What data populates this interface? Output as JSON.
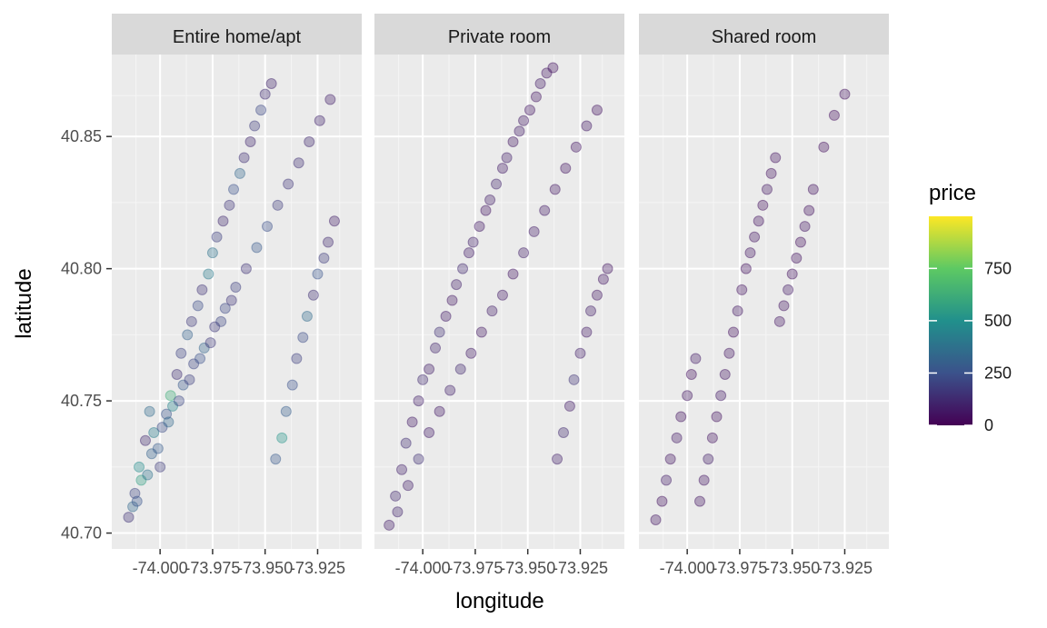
{
  "chart_data": {
    "type": "scatter",
    "facet_by": "room_type",
    "facets": [
      "Entire home/apt",
      "Private room",
      "Shared room"
    ],
    "xlabel": "longitude",
    "ylabel": "latitude",
    "xticks": [
      -74.0,
      -73.975,
      -73.95,
      -73.925
    ],
    "xtick_labels": [
      "-74.000",
      "-73.975",
      "-73.950",
      "-73.925"
    ],
    "yticks": [
      40.7,
      40.75,
      40.8,
      40.85
    ],
    "ytick_labels": [
      "40.70",
      "40.75",
      "40.80",
      "40.85"
    ],
    "xlim": [
      -74.023,
      -73.904
    ],
    "ylim": [
      40.694,
      40.881
    ],
    "grid": true,
    "point_alpha": 0.2,
    "legend": {
      "title": "price",
      "position": "right",
      "range": [
        0,
        999
      ],
      "breaks": [
        0,
        250,
        500,
        750
      ],
      "break_labels": [
        "0",
        "250",
        "500",
        "750"
      ],
      "colors": [
        "#440154",
        "#3b528b",
        "#21908c",
        "#5dc963",
        "#fde725"
      ]
    },
    "series": [
      {
        "facet": "Entire home/apt",
        "x": [
          -74.015,
          -74.012,
          -74.01,
          -74.007,
          -74.005,
          -74.003,
          -74.0,
          -73.997,
          -73.995,
          -73.992,
          -73.99,
          -73.987,
          -73.985,
          -73.982,
          -73.98,
          -73.977,
          -73.975,
          -73.973,
          -73.97,
          -73.967,
          -73.965,
          -73.962,
          -73.96,
          -73.957,
          -73.955,
          -73.952,
          -73.95,
          -73.947,
          -73.945,
          -73.942,
          -73.94,
          -73.937,
          -73.935,
          -73.932,
          -73.93,
          -73.927,
          -73.925,
          -73.922,
          -73.92,
          -73.917,
          -74.013,
          -74.009,
          -74.004,
          -73.999,
          -73.994,
          -73.989,
          -73.984,
          -73.979,
          -73.974,
          -73.969,
          -73.964,
          -73.959,
          -73.954,
          -73.949,
          -73.944,
          -73.939,
          -73.934,
          -73.929,
          -73.924,
          -73.919,
          -74.011,
          -74.006,
          -74.001,
          -73.996,
          -73.991,
          -73.986,
          -73.981,
          -73.976,
          -73.971,
          -73.966
        ],
        "y": [
          40.706,
          40.715,
          40.725,
          40.735,
          40.746,
          40.738,
          40.725,
          40.745,
          40.752,
          40.76,
          40.768,
          40.775,
          40.78,
          40.786,
          40.792,
          40.798,
          40.806,
          40.812,
          40.818,
          40.824,
          40.83,
          40.836,
          40.842,
          40.848,
          40.854,
          40.86,
          40.866,
          40.87,
          40.728,
          40.736,
          40.746,
          40.756,
          40.766,
          40.774,
          40.782,
          40.79,
          40.798,
          40.804,
          40.81,
          40.818,
          40.71,
          40.72,
          40.73,
          40.74,
          40.748,
          40.756,
          40.764,
          40.77,
          40.778,
          40.785,
          40.793,
          40.8,
          40.808,
          40.816,
          40.824,
          40.832,
          40.84,
          40.848,
          40.856,
          40.864,
          40.712,
          40.722,
          40.732,
          40.742,
          40.75,
          40.758,
          40.766,
          40.772,
          40.78,
          40.788
        ],
        "price": [
          150,
          210,
          480,
          120,
          350,
          420,
          180,
          260,
          620,
          140,
          200,
          310,
          170,
          230,
          150,
          410,
          380,
          190,
          120,
          160,
          250,
          330,
          140,
          110,
          180,
          220,
          130,
          100,
          280,
          520,
          300,
          250,
          190,
          230,
          350,
          140,
          260,
          180,
          120,
          90,
          340,
          560,
          310,
          230,
          450,
          280,
          210,
          320,
          170,
          220,
          190,
          150,
          280,
          240,
          180,
          160,
          140,
          120,
          100,
          90,
          260,
          380,
          290,
          340,
          220,
          190,
          250,
          170,
          210,
          160
        ]
      },
      {
        "facet": "Private room",
        "x": [
          -74.016,
          -74.013,
          -74.01,
          -74.008,
          -74.005,
          -74.002,
          -74.0,
          -73.997,
          -73.994,
          -73.992,
          -73.989,
          -73.986,
          -73.984,
          -73.981,
          -73.978,
          -73.976,
          -73.973,
          -73.97,
          -73.968,
          -73.965,
          -73.962,
          -73.96,
          -73.957,
          -73.954,
          -73.952,
          -73.949,
          -73.946,
          -73.944,
          -73.941,
          -73.938,
          -73.936,
          -73.933,
          -73.93,
          -73.928,
          -73.925,
          -73.922,
          -73.92,
          -73.917,
          -73.914,
          -73.912,
          -74.012,
          -74.007,
          -74.002,
          -73.997,
          -73.992,
          -73.987,
          -73.982,
          -73.977,
          -73.972,
          -73.967,
          -73.962,
          -73.957,
          -73.952,
          -73.947,
          -73.942,
          -73.937,
          -73.932,
          -73.927,
          -73.922,
          -73.917
        ],
        "y": [
          40.703,
          40.714,
          40.724,
          40.734,
          40.742,
          40.75,
          40.758,
          40.762,
          40.77,
          40.776,
          40.782,
          40.788,
          40.794,
          40.8,
          40.806,
          40.81,
          40.816,
          40.822,
          40.826,
          40.832,
          40.838,
          40.842,
          40.848,
          40.852,
          40.856,
          40.86,
          40.865,
          40.87,
          40.874,
          40.876,
          40.728,
          40.738,
          40.748,
          40.758,
          40.768,
          40.776,
          40.784,
          40.79,
          40.796,
          40.8,
          40.708,
          40.718,
          40.728,
          40.738,
          40.746,
          40.754,
          40.762,
          40.768,
          40.776,
          40.784,
          40.79,
          40.798,
          40.806,
          40.814,
          40.822,
          40.83,
          40.838,
          40.846,
          40.854,
          40.86
        ],
        "price": [
          80,
          110,
          95,
          130,
          70,
          90,
          120,
          85,
          100,
          140,
          75,
          65,
          90,
          110,
          80,
          95,
          70,
          60,
          85,
          100,
          75,
          90,
          65,
          80,
          70,
          60,
          55,
          75,
          60,
          50,
          95,
          120,
          80,
          150,
          90,
          70,
          85,
          65,
          60,
          55,
          100,
          90,
          140,
          80,
          70,
          95,
          110,
          75,
          65,
          85,
          70,
          60,
          90,
          80,
          75,
          65,
          55,
          60,
          70,
          50
        ]
      },
      {
        "facet": "Shared room",
        "x": [
          -74.015,
          -74.012,
          -74.01,
          -74.008,
          -74.005,
          -74.003,
          -74.0,
          -73.998,
          -73.996,
          -73.994,
          -73.992,
          -73.99,
          -73.988,
          -73.986,
          -73.984,
          -73.982,
          -73.98,
          -73.978,
          -73.976,
          -73.974,
          -73.972,
          -73.97,
          -73.968,
          -73.966,
          -73.964,
          -73.962,
          -73.96,
          -73.958,
          -73.956,
          -73.954,
          -73.952,
          -73.95,
          -73.948,
          -73.946,
          -73.944,
          -73.942,
          -73.94,
          -73.935,
          -73.93,
          -73.925
        ],
        "y": [
          40.705,
          40.712,
          40.72,
          40.728,
          40.736,
          40.744,
          40.752,
          40.76,
          40.766,
          40.712,
          40.72,
          40.728,
          40.736,
          40.744,
          40.752,
          40.76,
          40.768,
          40.776,
          40.784,
          40.792,
          40.8,
          40.806,
          40.812,
          40.818,
          40.824,
          40.83,
          40.836,
          40.842,
          40.78,
          40.786,
          40.792,
          40.798,
          40.804,
          40.81,
          40.816,
          40.822,
          40.83,
          40.846,
          40.858,
          40.866
        ],
        "price": [
          60,
          45,
          80,
          55,
          70,
          50,
          65,
          40,
          75,
          55,
          60,
          85,
          50,
          45,
          70,
          60,
          55,
          40,
          65,
          50,
          45,
          60,
          55,
          50,
          40,
          65,
          45,
          50,
          60,
          55,
          70,
          45,
          50,
          40,
          60,
          45,
          50,
          40,
          35,
          45
        ]
      }
    ]
  }
}
